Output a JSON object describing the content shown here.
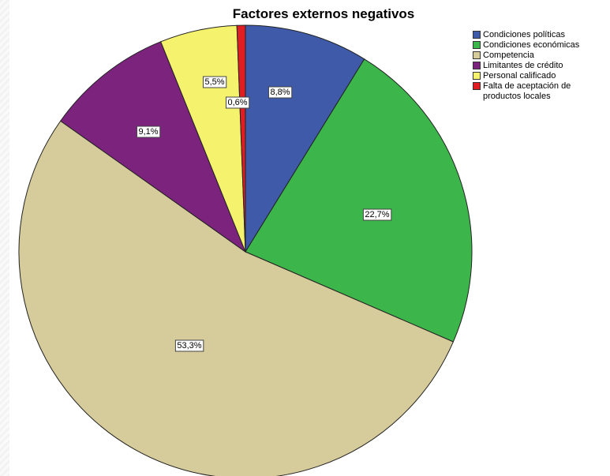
{
  "chart_data": {
    "type": "pie",
    "title": "Factores externos negativos",
    "slices": [
      {
        "name": "Condiciones políticas",
        "value": 8.8,
        "label": "8,8%",
        "color": "#3f5aa8"
      },
      {
        "name": "Condiciones económicas",
        "value": 22.7,
        "label": "22,7%",
        "color": "#3cb54a"
      },
      {
        "name": "Competencia",
        "value": 53.3,
        "label": "53,3%",
        "color": "#d6cb9a"
      },
      {
        "name": "Limitantes de crédito",
        "value": 9.1,
        "label": "9,1%",
        "color": "#7b237d"
      },
      {
        "name": "Personal calificado",
        "value": 5.5,
        "label": "5,5%",
        "color": "#f5f36e"
      },
      {
        "name": "Falta de  aceptación de productos locales",
        "value": 0.6,
        "label": "0,6%",
        "color": "#e11d24"
      }
    ],
    "legend_placement": "top-right"
  }
}
